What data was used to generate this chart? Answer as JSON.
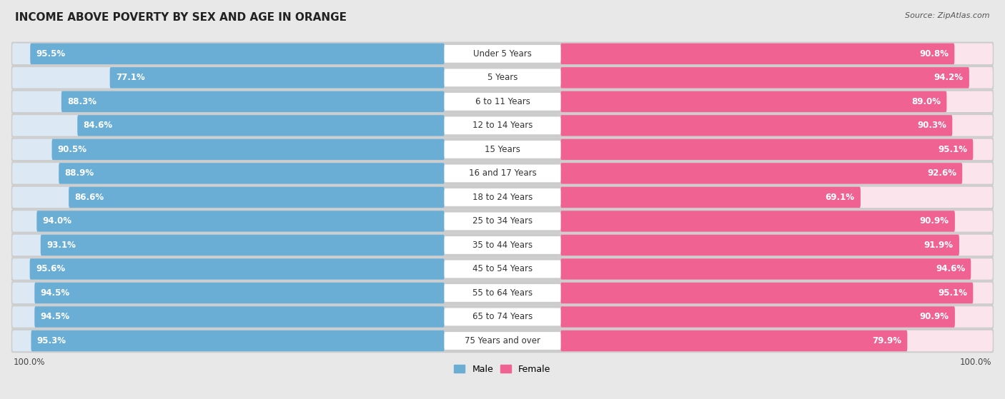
{
  "title": "INCOME ABOVE POVERTY BY SEX AND AGE IN ORANGE",
  "source": "Source: ZipAtlas.com",
  "categories": [
    "Under 5 Years",
    "5 Years",
    "6 to 11 Years",
    "12 to 14 Years",
    "15 Years",
    "16 and 17 Years",
    "18 to 24 Years",
    "25 to 34 Years",
    "35 to 44 Years",
    "45 to 54 Years",
    "55 to 64 Years",
    "65 to 74 Years",
    "75 Years and over"
  ],
  "male_values": [
    95.5,
    77.1,
    88.3,
    84.6,
    90.5,
    88.9,
    86.6,
    94.0,
    93.1,
    95.6,
    94.5,
    94.5,
    95.3
  ],
  "female_values": [
    90.8,
    94.2,
    89.0,
    90.3,
    95.1,
    92.6,
    69.1,
    90.9,
    91.9,
    94.6,
    95.1,
    90.9,
    79.9
  ],
  "male_color": "#6aaed6",
  "male_color_light": "#b8d8ee",
  "female_color": "#f06292",
  "female_color_light": "#f8bbd9",
  "male_label": "Male",
  "female_label": "Female",
  "bg_color": "#e8e8e8",
  "row_bg_color": "#d8d8d8",
  "bar_track_color": "#e0e0e0",
  "title_fontsize": 11,
  "label_fontsize": 8.5,
  "value_fontsize": 8.5,
  "axis_label_fontsize": 8.5,
  "source_fontsize": 8
}
